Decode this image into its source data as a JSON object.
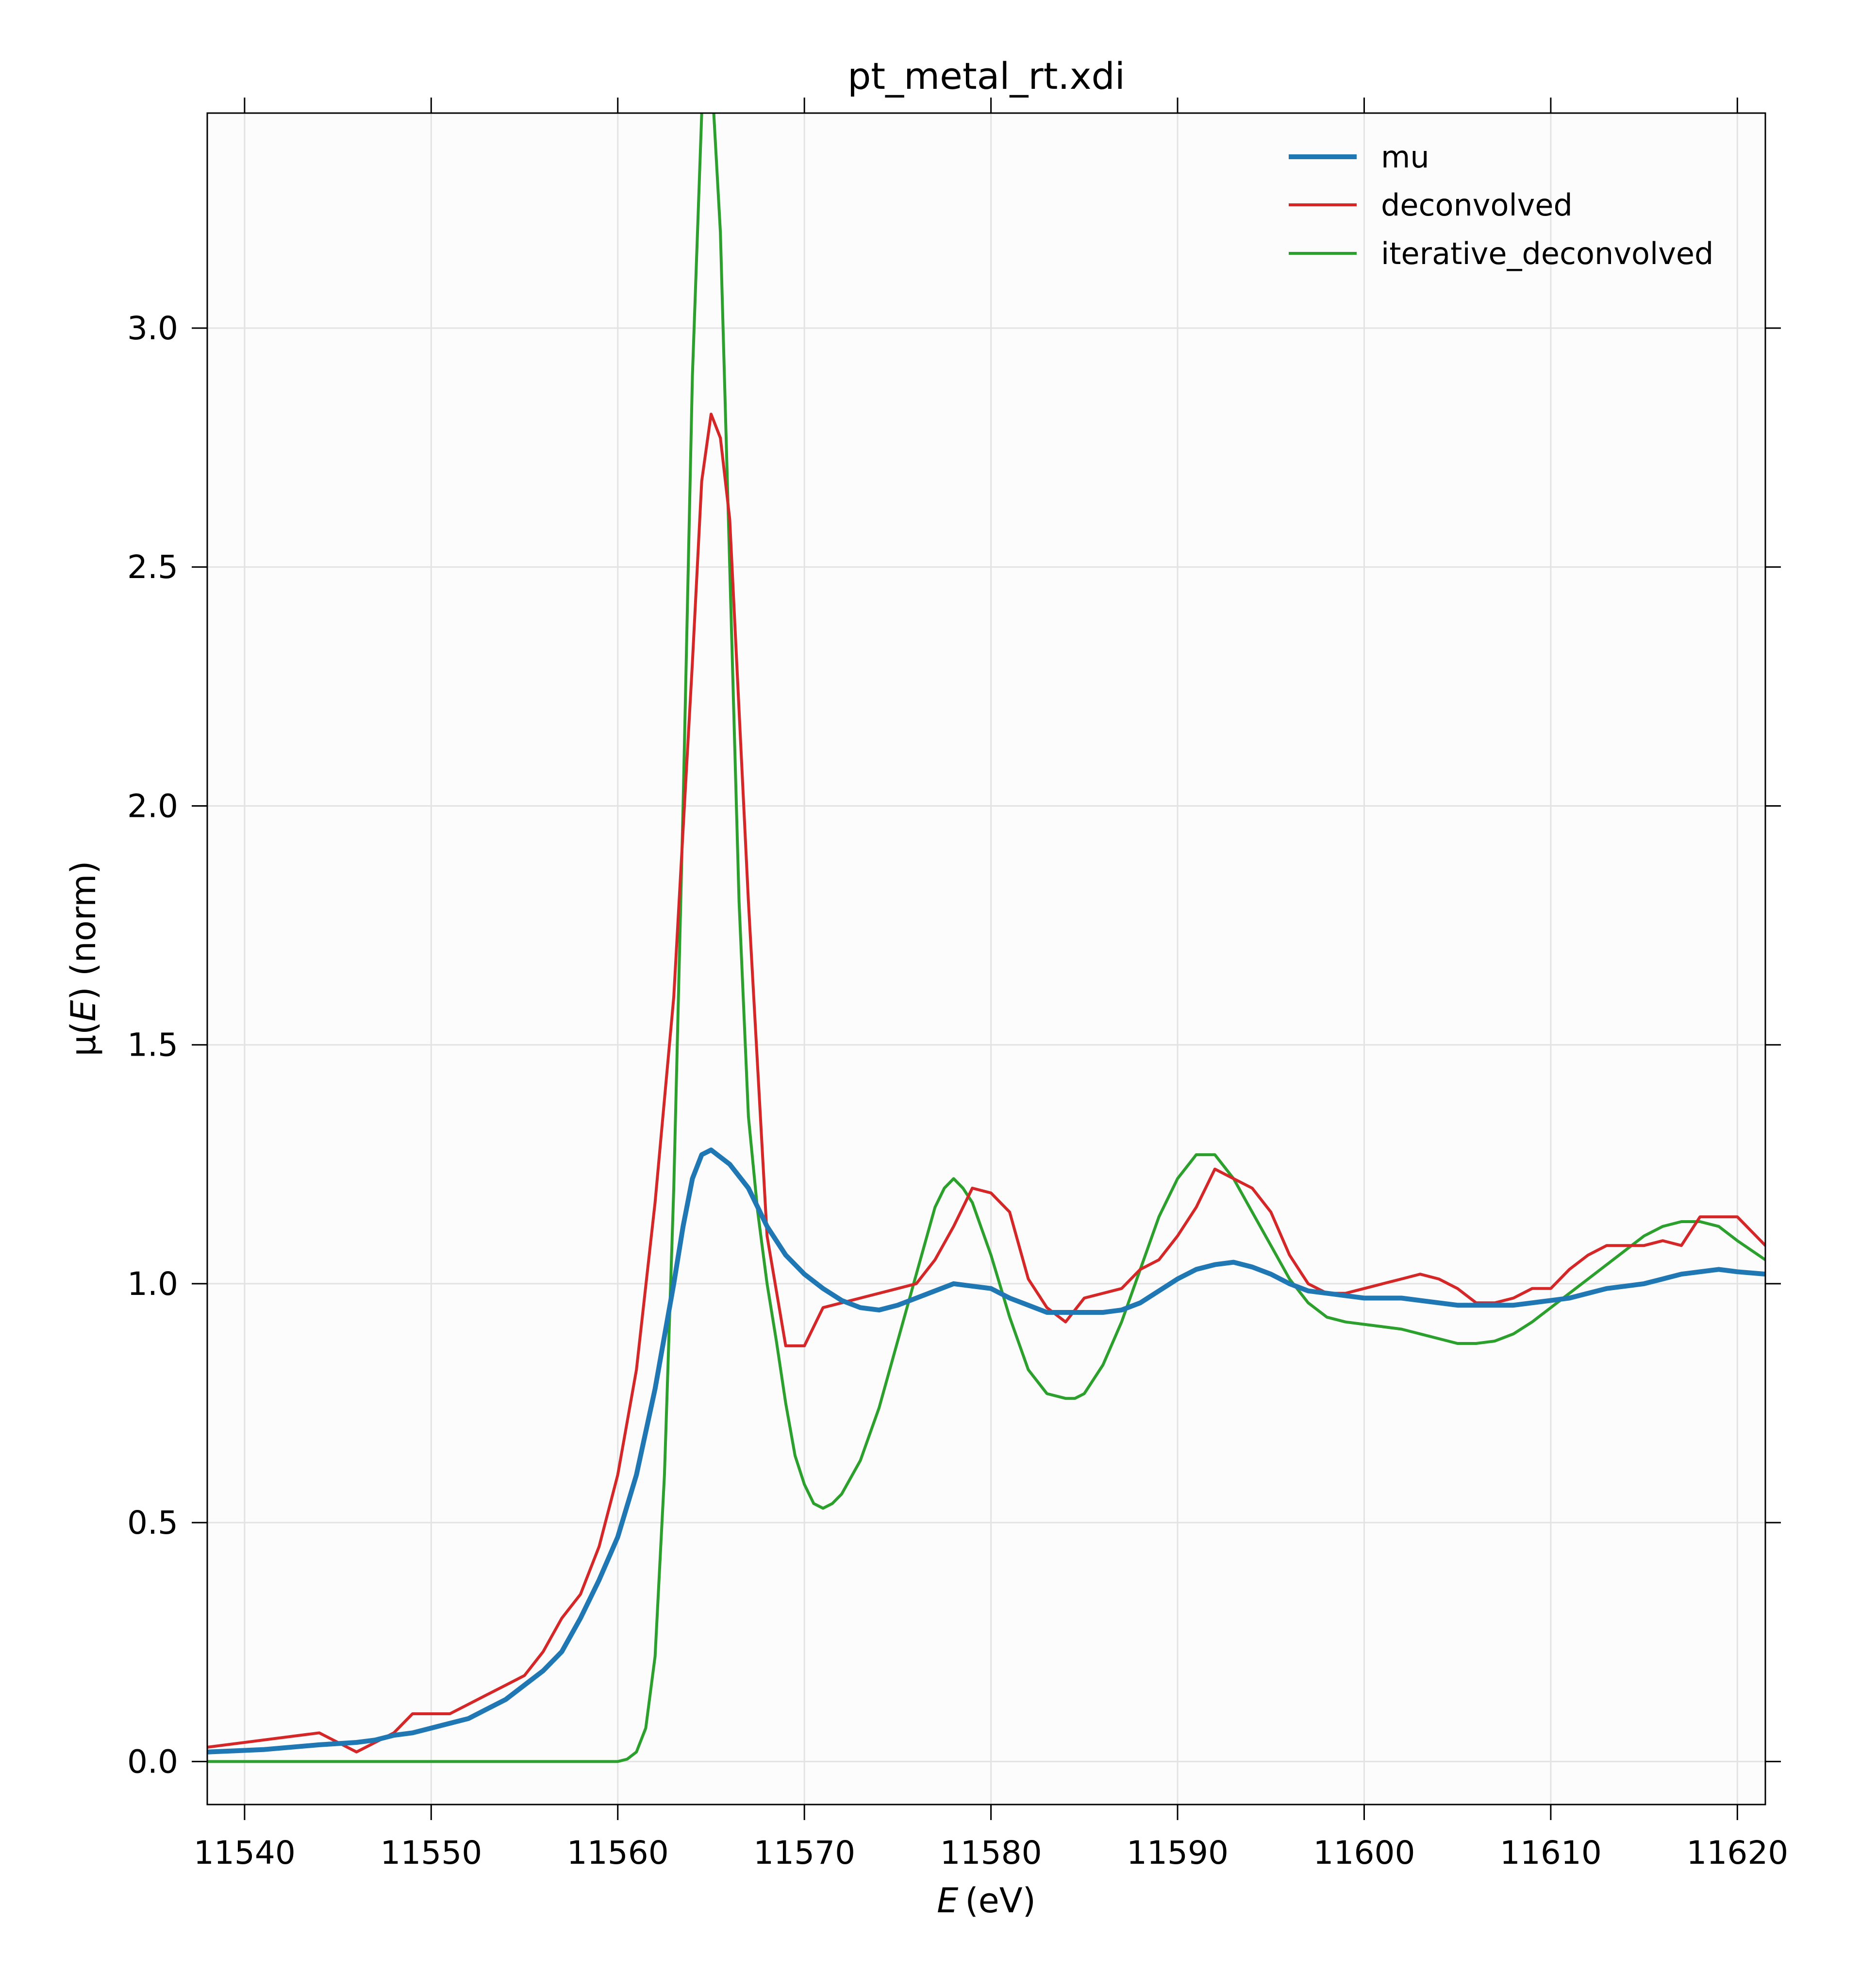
{
  "chart_data": {
    "type": "line",
    "title": "pt_metal_rt.xdi",
    "xlabel_var": "E",
    "xlabel_unit": "(eV)",
    "ylabel_prefix": "μ(",
    "ylabel_var": "E",
    "ylabel_suffix": ") (norm)",
    "xlim": [
      11538,
      11621.5
    ],
    "ylim": [
      -0.09,
      3.45
    ],
    "xticks": [
      11540,
      11550,
      11560,
      11570,
      11580,
      11590,
      11600,
      11610,
      11620
    ],
    "yticks": [
      0.0,
      0.5,
      1.0,
      1.5,
      2.0,
      2.5,
      3.0
    ],
    "ytick_labels": [
      "0.0",
      "0.5",
      "1.0",
      "1.5",
      "2.0",
      "2.5",
      "3.0"
    ],
    "grid": true,
    "legend_position": "top-right",
    "series": [
      {
        "name": "mu",
        "color": "#1f77b4",
        "line_width": "thick",
        "x": [
          11538,
          11541,
          11544,
          11546,
          11547,
          11548,
          11549,
          11550,
          11551,
          11552,
          11553,
          11554,
          11555,
          11556,
          11557,
          11558,
          11559,
          11560,
          11561,
          11562,
          11563,
          11563.5,
          11564,
          11564.5,
          11565,
          11566,
          11567,
          11568,
          11569,
          11570,
          11571,
          11572,
          11573,
          11574,
          11575,
          11576,
          11577,
          11578,
          11579,
          11580,
          11581,
          11582,
          11583,
          11584,
          11585,
          11586,
          11587,
          11588,
          11589,
          11590,
          11591,
          11592,
          11593,
          11594,
          11595,
          11596,
          11597,
          11598,
          11599,
          11600,
          11601,
          11602,
          11603,
          11604,
          11605,
          11606,
          11607,
          11608,
          11609,
          11610,
          11611,
          11612,
          11613,
          11614,
          11615,
          11616,
          11617,
          11618,
          11619,
          11620,
          11621.5
        ],
        "y": [
          0.02,
          0.025,
          0.035,
          0.04,
          0.045,
          0.055,
          0.06,
          0.07,
          0.08,
          0.09,
          0.11,
          0.13,
          0.16,
          0.19,
          0.23,
          0.3,
          0.38,
          0.47,
          0.6,
          0.78,
          1.0,
          1.12,
          1.22,
          1.27,
          1.28,
          1.25,
          1.2,
          1.12,
          1.06,
          1.02,
          0.99,
          0.965,
          0.95,
          0.945,
          0.955,
          0.97,
          0.985,
          1.0,
          0.995,
          0.99,
          0.97,
          0.955,
          0.94,
          0.94,
          0.94,
          0.94,
          0.945,
          0.96,
          0.985,
          1.01,
          1.03,
          1.04,
          1.045,
          1.035,
          1.02,
          1.0,
          0.985,
          0.98,
          0.975,
          0.97,
          0.97,
          0.97,
          0.965,
          0.96,
          0.955,
          0.955,
          0.955,
          0.955,
          0.96,
          0.965,
          0.97,
          0.98,
          0.99,
          0.995,
          1.0,
          1.01,
          1.02,
          1.025,
          1.03,
          1.025,
          1.02
        ]
      },
      {
        "name": "deconvolved",
        "color": "#d62728",
        "line_width": "thin",
        "x": [
          11538,
          11544,
          11545,
          11546,
          11547,
          11548,
          11549,
          11550,
          11551,
          11552,
          11553,
          11554,
          11555,
          11556,
          11557,
          11558,
          11559,
          11560,
          11561,
          11562,
          11563,
          11564,
          11564.5,
          11565,
          11565.5,
          11566,
          11567,
          11568,
          11569,
          11570,
          11571,
          11572,
          11573,
          11574,
          11575,
          11576,
          11577,
          11578,
          11579,
          11580,
          11581,
          11582,
          11583,
          11584,
          11585,
          11586,
          11587,
          11588,
          11589,
          11590,
          11591,
          11592,
          11593,
          11594,
          11595,
          11596,
          11597,
          11598,
          11599,
          11600,
          11601,
          11602,
          11603,
          11604,
          11605,
          11606,
          11607,
          11608,
          11609,
          11610,
          11611,
          11612,
          11613,
          11614,
          11615,
          11616,
          11617,
          11618,
          11619,
          11620,
          11621.5
        ],
        "y": [
          0.03,
          0.06,
          0.04,
          0.02,
          0.04,
          0.06,
          0.1,
          0.1,
          0.1,
          0.12,
          0.14,
          0.16,
          0.18,
          0.23,
          0.3,
          0.35,
          0.45,
          0.6,
          0.82,
          1.17,
          1.6,
          2.3,
          2.68,
          2.82,
          2.77,
          2.6,
          1.8,
          1.1,
          0.87,
          0.87,
          0.95,
          0.96,
          0.97,
          0.98,
          0.99,
          1.0,
          1.05,
          1.12,
          1.2,
          1.19,
          1.15,
          1.01,
          0.95,
          0.92,
          0.97,
          0.98,
          0.99,
          1.03,
          1.05,
          1.1,
          1.16,
          1.24,
          1.22,
          1.2,
          1.15,
          1.06,
          1.0,
          0.98,
          0.98,
          0.99,
          1.0,
          1.01,
          1.02,
          1.01,
          0.99,
          0.96,
          0.96,
          0.97,
          0.99,
          0.99,
          1.03,
          1.06,
          1.08,
          1.08,
          1.08,
          1.09,
          1.08,
          1.14,
          1.14,
          1.14,
          1.08
        ]
      },
      {
        "name": "iterative_deconvolved",
        "color": "#2ca02c",
        "line_width": "thin",
        "x": [
          11538,
          11560,
          11560.5,
          11561,
          11561.5,
          11562,
          11562.5,
          11563,
          11563.5,
          11564,
          11564.5,
          11565,
          11565.5,
          11566,
          11566.5,
          11567,
          11567.5,
          11568,
          11568.5,
          11569,
          11569.5,
          11570,
          11570.5,
          11571,
          11571.5,
          11572,
          11573,
          11574,
          11575,
          11576,
          11577,
          11577.5,
          11578,
          11578.5,
          11579,
          11580,
          11581,
          11582,
          11583,
          11584,
          11584.5,
          11585,
          11586,
          11587,
          11588,
          11589,
          11590,
          11591,
          11592,
          11593,
          11594,
          11595,
          11596,
          11597,
          11598,
          11599,
          11600,
          11601,
          11602,
          11603,
          11604,
          11605,
          11606,
          11607,
          11608,
          11609,
          11610,
          11611,
          11612,
          11613,
          11614,
          11615,
          11616,
          11617,
          11618,
          11619,
          11620,
          11621.5
        ],
        "y": [
          0.0,
          0.0,
          0.005,
          0.02,
          0.07,
          0.22,
          0.6,
          1.2,
          2.0,
          2.9,
          3.45,
          3.55,
          3.2,
          2.5,
          1.8,
          1.35,
          1.15,
          1.0,
          0.88,
          0.75,
          0.64,
          0.58,
          0.54,
          0.53,
          0.54,
          0.56,
          0.63,
          0.74,
          0.88,
          1.02,
          1.16,
          1.2,
          1.22,
          1.2,
          1.17,
          1.06,
          0.93,
          0.82,
          0.77,
          0.76,
          0.76,
          0.77,
          0.83,
          0.92,
          1.03,
          1.14,
          1.22,
          1.27,
          1.27,
          1.22,
          1.15,
          1.08,
          1.01,
          0.96,
          0.93,
          0.92,
          0.915,
          0.91,
          0.905,
          0.895,
          0.885,
          0.875,
          0.875,
          0.88,
          0.895,
          0.92,
          0.95,
          0.98,
          1.01,
          1.04,
          1.07,
          1.1,
          1.12,
          1.13,
          1.13,
          1.12,
          1.09,
          1.05
        ]
      }
    ]
  }
}
